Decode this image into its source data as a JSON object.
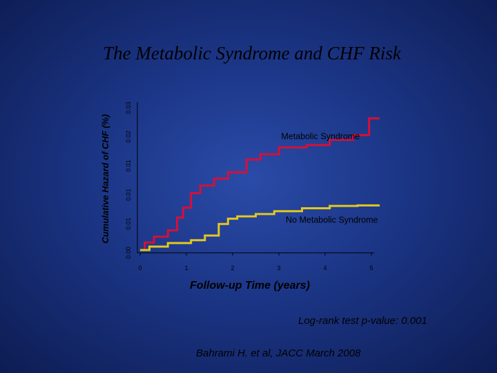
{
  "slide": {
    "title": "The Metabolic Syndrome and CHF Risk",
    "pvalue_text": "Log-rank test p-value: 0.001",
    "citation": "Bahrami H. et al,  JACC March 2008"
  },
  "colors": {
    "background": "#1b3585",
    "metabolic_syndrome": "#d4103a",
    "no_metabolic_syndrome": "#e2c81e"
  },
  "chart_data": {
    "type": "line",
    "xlabel": "Follow-up Time (years)",
    "ylabel": "Cumulative Hazard of CHF (%)",
    "x_ticks": [
      "0",
      "1",
      "2",
      "3",
      "4",
      "5"
    ],
    "y_tick_labels": [
      "0.00",
      "0.01",
      "0.01",
      "0.01",
      "0.02",
      "0.03"
    ],
    "xlim": [
      0,
      5
    ],
    "ylim": [
      0,
      0.025
    ],
    "grid": false,
    "step": true,
    "series": [
      {
        "name": "Metabolic Syndrome",
        "color": "#d4103a",
        "points": [
          [
            0,
            0
          ],
          [
            0.05,
            0
          ],
          [
            0.1,
            0.0013
          ],
          [
            0.3,
            0.0023
          ],
          [
            0.6,
            0.0034
          ],
          [
            0.8,
            0.0056
          ],
          [
            0.93,
            0.0073
          ],
          [
            1.1,
            0.0098
          ],
          [
            1.3,
            0.0111
          ],
          [
            1.6,
            0.0123
          ],
          [
            1.9,
            0.0134
          ],
          [
            2.3,
            0.0156
          ],
          [
            2.6,
            0.0165
          ],
          [
            3.0,
            0.0177
          ],
          [
            3.6,
            0.0181
          ],
          [
            4.1,
            0.019
          ],
          [
            4.6,
            0.0198
          ],
          [
            4.95,
            0.0227
          ],
          [
            5.18,
            0.0227
          ]
        ]
      },
      {
        "name": "No Metabolic Syndrome",
        "color": "#e2c81e",
        "points": [
          [
            0,
            0
          ],
          [
            0.1,
            0
          ],
          [
            0.2,
            0.0006
          ],
          [
            0.6,
            0.0012
          ],
          [
            1.1,
            0.0017
          ],
          [
            1.4,
            0.0025
          ],
          [
            1.7,
            0.0045
          ],
          [
            1.9,
            0.0054
          ],
          [
            2.1,
            0.0058
          ],
          [
            2.5,
            0.0062
          ],
          [
            2.9,
            0.0067
          ],
          [
            3.5,
            0.0072
          ],
          [
            4.1,
            0.0076
          ],
          [
            4.7,
            0.0077
          ],
          [
            5.18,
            0.0077
          ]
        ]
      }
    ],
    "annotations": [
      {
        "text": "Metabolic Syndrome",
        "series": "Metabolic Syndrome",
        "x": 3.05,
        "y": 0.0191
      },
      {
        "text": "No Metabolic Syndrome",
        "series": "No Metabolic Syndrome",
        "x": 3.15,
        "y": 0.0047
      }
    ]
  }
}
